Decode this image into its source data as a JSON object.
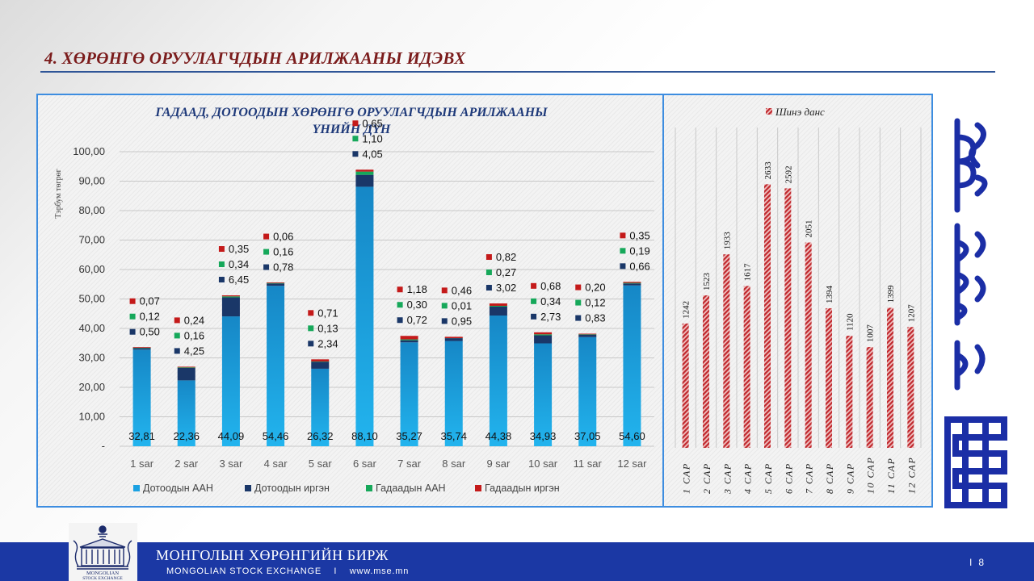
{
  "slide": {
    "title": "4. ХӨРӨНГӨ ОРУУЛАГЧДЫН АРИЛЖААНЫ ИДЭВХ",
    "page_number": "8"
  },
  "footer": {
    "org_name_mn": "МОНГОЛЫН ХӨРӨНГИЙН БИРЖ",
    "org_name_en": "MONGOLIAN STOCK EXCHANGE",
    "separator": "I",
    "website": "www.mse.mn",
    "page_separator": "I",
    "logo_text_line1": "MONGOLIAN",
    "logo_text_line2": "STOCK EXCHANGE",
    "bar_color": "#1b38a4"
  },
  "chart_data": [
    {
      "type": "bar",
      "stacked": true,
      "title_line1": "ГАДААД, ДОТООДЫН ХӨРӨНГӨ ОРУУЛАГЧДЫН АРИЛЖААНЫ",
      "title_line2": "ҮНИЙН ДҮН",
      "ylabel": "Тэрбум төгрөг",
      "ylim": [
        0,
        100
      ],
      "yticks": [
        "-",
        "10,00",
        "20,00",
        "30,00",
        "40,00",
        "50,00",
        "60,00",
        "70,00",
        "80,00",
        "90,00",
        "100,00"
      ],
      "categories": [
        "1 sar",
        "2 sar",
        "3 sar",
        "4 sar",
        "5 sar",
        "6 sar",
        "7 sar",
        "8 sar",
        "9 sar",
        "10 sar",
        "11 sar",
        "12 sar"
      ],
      "grid": true,
      "legend_position": "bottom",
      "series": [
        {
          "name": "Дотоодын ААН",
          "color": "#1ba1e2",
          "values": [
            32.81,
            22.36,
            44.09,
            54.46,
            26.32,
            88.1,
            35.27,
            35.74,
            44.38,
            34.93,
            37.05,
            54.6
          ],
          "labels": [
            "32,81",
            "22,36",
            "44,09",
            "54,46",
            "26,32",
            "88,10",
            "35,27",
            "35,74",
            "44,38",
            "34,93",
            "37,05",
            "54,60"
          ]
        },
        {
          "name": "Дотоодын иргэн",
          "color": "#1a3768",
          "values": [
            0.5,
            4.25,
            6.45,
            0.78,
            2.34,
            4.05,
            0.72,
            0.95,
            3.02,
            2.73,
            0.83,
            0.66
          ],
          "labels": [
            "0,50",
            "4,25",
            "6,45",
            "0,78",
            "2,34",
            "4,05",
            "0,72",
            "0,95",
            "3,02",
            "2,73",
            "0,83",
            "0,66"
          ]
        },
        {
          "name": "Гадаадын ААН",
          "color": "#16a85a",
          "values": [
            0.12,
            0.16,
            0.34,
            0.16,
            0.13,
            1.1,
            0.3,
            0.01,
            0.27,
            0.34,
            0.12,
            0.19
          ],
          "labels": [
            "0,12",
            "0,16",
            "0,34",
            "0,16",
            "0,13",
            "1,10",
            "0,30",
            "0,01",
            "0,27",
            "0,34",
            "0,12",
            "0,19"
          ]
        },
        {
          "name": "Гадаадын иргэн",
          "color": "#c41a1a",
          "values": [
            0.07,
            0.24,
            0.35,
            0.06,
            0.71,
            0.65,
            1.18,
            0.46,
            0.82,
            0.68,
            0.2,
            0.35
          ],
          "labels": [
            "0,07",
            "0,24",
            "0,35",
            "0,06",
            "0,71",
            "0,65",
            "1,18",
            "0,46",
            "0,82",
            "0,68",
            "0,20",
            "0,35"
          ]
        }
      ]
    },
    {
      "type": "bar",
      "orientation": "vertical",
      "categories": [
        "1 САР",
        "2 САР",
        "3 САР",
        "4 САР",
        "5 САР",
        "6 САР",
        "7 САР",
        "8 САР",
        "9 САР",
        "10 САР",
        "11 САР",
        "12 САР"
      ],
      "series": [
        {
          "name": "Шинэ данс",
          "color": "#c0282d",
          "values": [
            1242,
            1523,
            1933,
            1617,
            2633,
            2592,
            2051,
            1394,
            1120,
            1007,
            1399,
            1207
          ]
        }
      ],
      "legend_position": "top",
      "grid": true
    }
  ]
}
